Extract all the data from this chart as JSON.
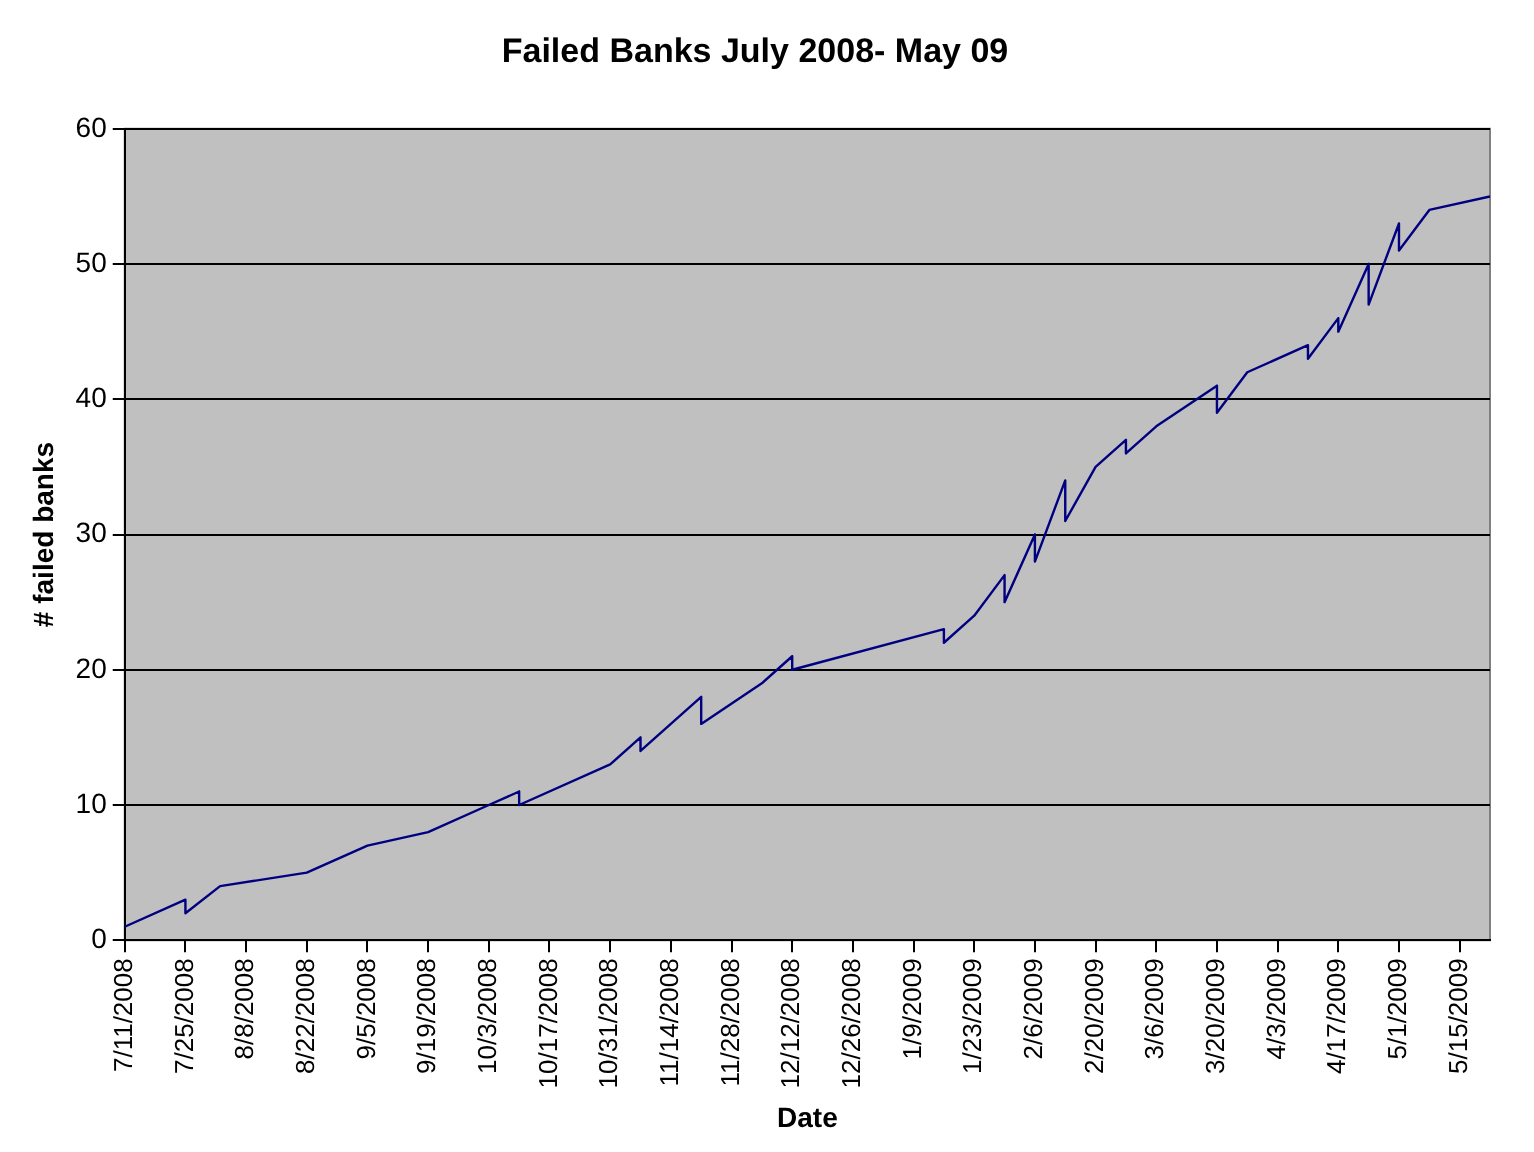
{
  "chart_data": {
    "type": "line",
    "title": "Failed Banks July 2008- May 09",
    "xlabel": "Date",
    "ylabel": "# failed banks",
    "x": [
      "2008-07-11",
      "2008-07-25",
      "2008-07-25",
      "2008-08-02",
      "2008-08-22",
      "2008-09-05",
      "2008-09-19",
      "2008-10-03",
      "2008-10-10",
      "2008-10-10",
      "2008-10-31",
      "2008-11-07",
      "2008-11-07",
      "2008-11-21",
      "2008-11-21",
      "2008-12-05",
      "2008-12-12",
      "2008-12-12",
      "2009-01-16",
      "2009-01-16",
      "2009-01-23",
      "2009-01-30",
      "2009-01-30",
      "2009-02-06",
      "2009-02-06",
      "2009-02-13",
      "2009-02-13",
      "2009-02-20",
      "2009-02-27",
      "2009-02-27",
      "2009-03-06",
      "2009-03-20",
      "2009-03-20",
      "2009-03-27",
      "2009-04-10",
      "2009-04-10",
      "2009-04-17",
      "2009-04-17",
      "2009-04-24",
      "2009-04-24",
      "2009-05-01",
      "2009-05-01",
      "2009-05-08",
      "2009-05-22"
    ],
    "series": [
      {
        "color": "#000080",
        "values": [
          1,
          3,
          2,
          4,
          5,
          7,
          8,
          10,
          11,
          10,
          13,
          15,
          14,
          18,
          16,
          19,
          21,
          20,
          23,
          22,
          24,
          27,
          25,
          30,
          28,
          34,
          31,
          35,
          37,
          36,
          38,
          41,
          39,
          42,
          44,
          43,
          46,
          45,
          50,
          47,
          53,
          51,
          54,
          55
        ]
      }
    ],
    "xlim": [
      "2008-07-11",
      "2009-05-22"
    ],
    "xticks": [
      {
        "value": "2008-07-11",
        "label": "7/11/2008"
      },
      {
        "value": "2008-07-25",
        "label": "7/25/2008"
      },
      {
        "value": "2008-08-08",
        "label": "8/8/2008"
      },
      {
        "value": "2008-08-22",
        "label": "8/22/2008"
      },
      {
        "value": "2008-09-05",
        "label": "9/5/2008"
      },
      {
        "value": "2008-09-19",
        "label": "9/19/2008"
      },
      {
        "value": "2008-10-03",
        "label": "10/3/2008"
      },
      {
        "value": "2008-10-17",
        "label": "10/17/2008"
      },
      {
        "value": "2008-10-31",
        "label": "10/31/2008"
      },
      {
        "value": "2008-11-14",
        "label": "11/14/2008"
      },
      {
        "value": "2008-11-28",
        "label": "11/28/2008"
      },
      {
        "value": "2008-12-12",
        "label": "12/12/2008"
      },
      {
        "value": "2008-12-26",
        "label": "12/26/2008"
      },
      {
        "value": "2009-01-09",
        "label": "1/9/2009"
      },
      {
        "value": "2009-01-23",
        "label": "1/23/2009"
      },
      {
        "value": "2009-02-06",
        "label": "2/6/2009"
      },
      {
        "value": "2009-02-20",
        "label": "2/20/2009"
      },
      {
        "value": "2009-03-06",
        "label": "3/6/2009"
      },
      {
        "value": "2009-03-20",
        "label": "3/20/2009"
      },
      {
        "value": "2009-04-03",
        "label": "4/3/2009"
      },
      {
        "value": "2009-04-17",
        "label": "4/17/2009"
      },
      {
        "value": "2009-05-01",
        "label": "5/1/2009"
      },
      {
        "value": "2009-05-15",
        "label": "5/15/2009"
      }
    ],
    "ylim": [
      0,
      60
    ],
    "yticks": [
      0,
      10,
      20,
      30,
      40,
      50,
      60
    ],
    "grid": "y",
    "legend": false,
    "marker": "none",
    "line_style": "solid"
  }
}
